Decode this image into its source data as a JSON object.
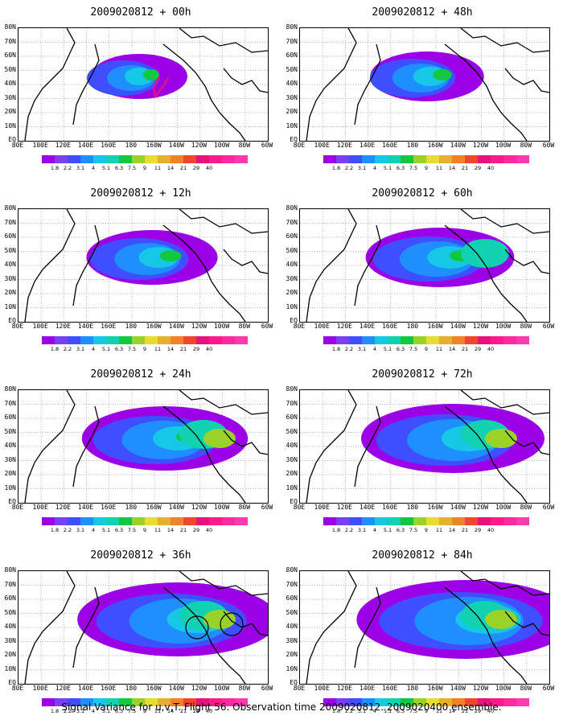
{
  "panels": [
    {
      "title": "2009020812 + 00h"
    },
    {
      "title": "2009020812 + 48h"
    },
    {
      "title": "2009020812 + 12h"
    },
    {
      "title": "2009020812 + 60h"
    },
    {
      "title": "2009020812 + 24h"
    },
    {
      "title": "2009020812 + 72h"
    },
    {
      "title": "2009020812 + 36h"
    },
    {
      "title": "2009020812 + 84h"
    }
  ],
  "lat_labels": [
    "80N",
    "70N",
    "60N",
    "50N",
    "40N",
    "30N",
    "20N",
    "10N",
    "EQ"
  ],
  "lon_labels": [
    "80E",
    "100E",
    "120E",
    "140E",
    "160E",
    "180",
    "160W",
    "140W",
    "120W",
    "100W",
    "80W",
    "60W"
  ],
  "colorbar": {
    "labels": [
      "1.8",
      "2.2",
      "3.1",
      "4",
      "5.1",
      "6.3",
      "7.5",
      "9",
      "11",
      "14",
      "21",
      "29",
      "40"
    ],
    "colors": [
      "#9b00e6",
      "#7b3ff2",
      "#3f4fff",
      "#1f8fff",
      "#17c8e6",
      "#10d2b0",
      "#11c840",
      "#9ad22a",
      "#e6dc32",
      "#e6af2d",
      "#f08228",
      "#f0462d",
      "#e6147a"
    ]
  },
  "caption": "Signal Variance for u,v,T. Flight 56. Observation time 2009020812. 2009020400 ensemble."
}
